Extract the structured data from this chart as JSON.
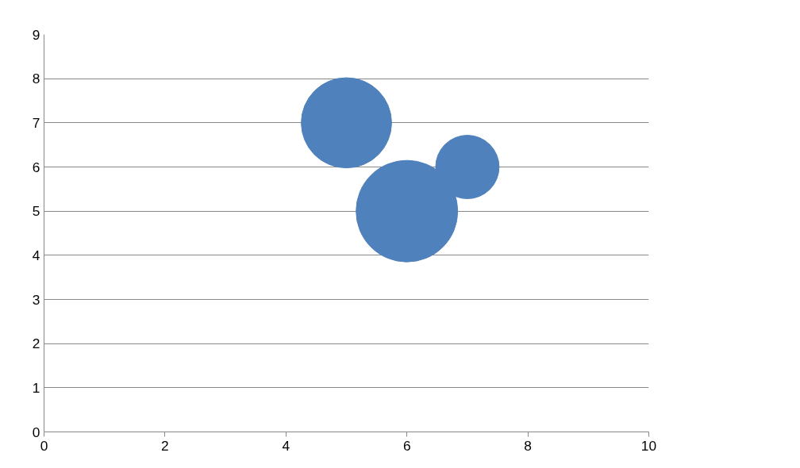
{
  "chart_data": {
    "type": "bubble",
    "x": [
      5,
      6,
      7
    ],
    "values": [
      7,
      5,
      6
    ],
    "sizes": [
      0.79,
      1,
      0.39
    ],
    "color": "#4f81bd",
    "xlim": [
      0,
      10
    ],
    "xticks": [
      0,
      2,
      4,
      6,
      8,
      10
    ],
    "ylim": [
      0,
      9
    ],
    "yticks": [
      0,
      1,
      2,
      3,
      4,
      5,
      6,
      7,
      8,
      9
    ],
    "grid": "y"
  }
}
